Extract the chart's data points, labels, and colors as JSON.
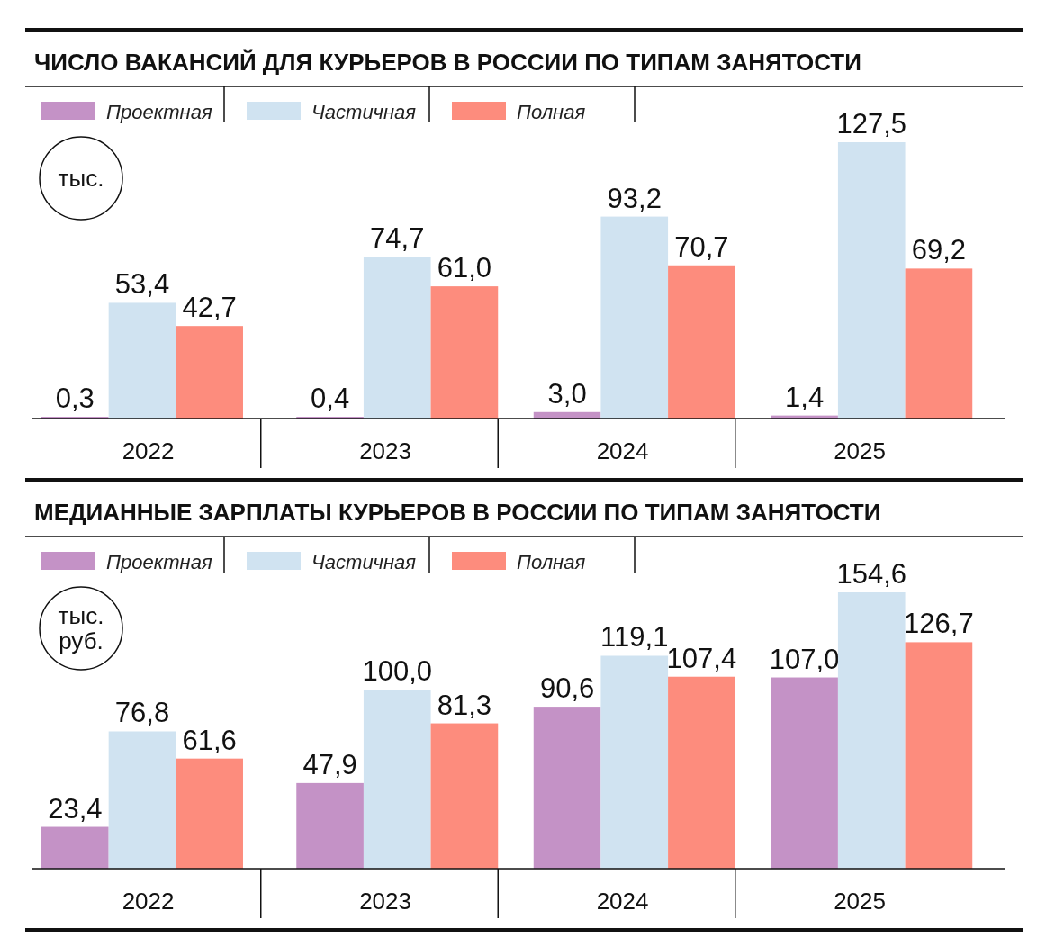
{
  "chart_data": [
    {
      "type": "bar",
      "title": "ЧИСЛО ВАКАНСИЙ ДЛЯ КУРЬЕРОВ В РОССИИ ПО ТИПАМ ЗАНЯТОСТИ",
      "ylabel": "тыс.",
      "legend": "top left",
      "categories": [
        "2022",
        "2023",
        "2024",
        "2025"
      ],
      "series": [
        {
          "name": "Проектная",
          "color": "#c492c6",
          "values": [
            0.3,
            0.4,
            3.0,
            1.4
          ],
          "value_labels": [
            "0,3",
            "0,4",
            "3,0",
            "1,4"
          ]
        },
        {
          "name": "Частичная",
          "color": "#d0e3f1",
          "values": [
            53.4,
            74.7,
            93.2,
            127.5
          ],
          "value_labels": [
            "53,4",
            "74,7",
            "93,2",
            "127,5"
          ]
        },
        {
          "name": "Полная",
          "color": "#fd8c7d",
          "values": [
            42.7,
            61.0,
            70.7,
            69.2
          ],
          "value_labels": [
            "42,7",
            "61,0",
            "70,7",
            "69,2"
          ]
        }
      ]
    },
    {
      "type": "bar",
      "title": "МЕДИАННЫЕ ЗАРПЛАТЫ КУРЬЕРОВ В РОССИИ ПО ТИПАМ ЗАНЯТОСТИ",
      "ylabel": "тыс. руб.",
      "legend": "top left",
      "categories": [
        "2022",
        "2023",
        "2024",
        "2025"
      ],
      "series": [
        {
          "name": "Проектная",
          "color": "#c492c6",
          "values": [
            23.4,
            47.9,
            90.6,
            107.0
          ],
          "value_labels": [
            "23,4",
            "47,9",
            "90,6",
            "107,0"
          ]
        },
        {
          "name": "Частичная",
          "color": "#d0e3f1",
          "values": [
            76.8,
            100.0,
            119.1,
            154.6
          ],
          "value_labels": [
            "76,8",
            "100,0",
            "119,1",
            "154,6"
          ]
        },
        {
          "name": "Полная",
          "color": "#fd8c7d",
          "values": [
            61.6,
            81.3,
            107.4,
            126.7
          ],
          "value_labels": [
            "61,6",
            "81,3",
            "107,4",
            "126,7"
          ]
        }
      ]
    }
  ]
}
